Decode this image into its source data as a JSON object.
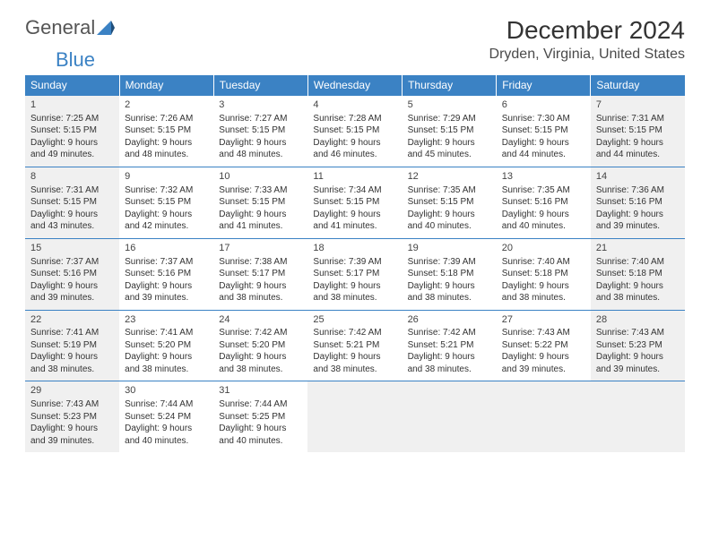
{
  "logo": {
    "part1": "General",
    "part2": "Blue"
  },
  "title": "December 2024",
  "location": "Dryden, Virginia, United States",
  "colors": {
    "header_bg": "#3b82c4",
    "header_fg": "#ffffff",
    "shade_bg": "#f0f0f0",
    "border": "#3b82c4"
  },
  "dayNames": [
    "Sunday",
    "Monday",
    "Tuesday",
    "Wednesday",
    "Thursday",
    "Friday",
    "Saturday"
  ],
  "weeks": [
    [
      {
        "n": "1",
        "shade": true,
        "sr": "Sunrise: 7:25 AM",
        "ss": "Sunset: 5:15 PM",
        "d1": "Daylight: 9 hours",
        "d2": "and 49 minutes."
      },
      {
        "n": "2",
        "shade": false,
        "sr": "Sunrise: 7:26 AM",
        "ss": "Sunset: 5:15 PM",
        "d1": "Daylight: 9 hours",
        "d2": "and 48 minutes."
      },
      {
        "n": "3",
        "shade": false,
        "sr": "Sunrise: 7:27 AM",
        "ss": "Sunset: 5:15 PM",
        "d1": "Daylight: 9 hours",
        "d2": "and 48 minutes."
      },
      {
        "n": "4",
        "shade": false,
        "sr": "Sunrise: 7:28 AM",
        "ss": "Sunset: 5:15 PM",
        "d1": "Daylight: 9 hours",
        "d2": "and 46 minutes."
      },
      {
        "n": "5",
        "shade": false,
        "sr": "Sunrise: 7:29 AM",
        "ss": "Sunset: 5:15 PM",
        "d1": "Daylight: 9 hours",
        "d2": "and 45 minutes."
      },
      {
        "n": "6",
        "shade": false,
        "sr": "Sunrise: 7:30 AM",
        "ss": "Sunset: 5:15 PM",
        "d1": "Daylight: 9 hours",
        "d2": "and 44 minutes."
      },
      {
        "n": "7",
        "shade": true,
        "sr": "Sunrise: 7:31 AM",
        "ss": "Sunset: 5:15 PM",
        "d1": "Daylight: 9 hours",
        "d2": "and 44 minutes."
      }
    ],
    [
      {
        "n": "8",
        "shade": true,
        "sr": "Sunrise: 7:31 AM",
        "ss": "Sunset: 5:15 PM",
        "d1": "Daylight: 9 hours",
        "d2": "and 43 minutes."
      },
      {
        "n": "9",
        "shade": false,
        "sr": "Sunrise: 7:32 AM",
        "ss": "Sunset: 5:15 PM",
        "d1": "Daylight: 9 hours",
        "d2": "and 42 minutes."
      },
      {
        "n": "10",
        "shade": false,
        "sr": "Sunrise: 7:33 AM",
        "ss": "Sunset: 5:15 PM",
        "d1": "Daylight: 9 hours",
        "d2": "and 41 minutes."
      },
      {
        "n": "11",
        "shade": false,
        "sr": "Sunrise: 7:34 AM",
        "ss": "Sunset: 5:15 PM",
        "d1": "Daylight: 9 hours",
        "d2": "and 41 minutes."
      },
      {
        "n": "12",
        "shade": false,
        "sr": "Sunrise: 7:35 AM",
        "ss": "Sunset: 5:15 PM",
        "d1": "Daylight: 9 hours",
        "d2": "and 40 minutes."
      },
      {
        "n": "13",
        "shade": false,
        "sr": "Sunrise: 7:35 AM",
        "ss": "Sunset: 5:16 PM",
        "d1": "Daylight: 9 hours",
        "d2": "and 40 minutes."
      },
      {
        "n": "14",
        "shade": true,
        "sr": "Sunrise: 7:36 AM",
        "ss": "Sunset: 5:16 PM",
        "d1": "Daylight: 9 hours",
        "d2": "and 39 minutes."
      }
    ],
    [
      {
        "n": "15",
        "shade": true,
        "sr": "Sunrise: 7:37 AM",
        "ss": "Sunset: 5:16 PM",
        "d1": "Daylight: 9 hours",
        "d2": "and 39 minutes."
      },
      {
        "n": "16",
        "shade": false,
        "sr": "Sunrise: 7:37 AM",
        "ss": "Sunset: 5:16 PM",
        "d1": "Daylight: 9 hours",
        "d2": "and 39 minutes."
      },
      {
        "n": "17",
        "shade": false,
        "sr": "Sunrise: 7:38 AM",
        "ss": "Sunset: 5:17 PM",
        "d1": "Daylight: 9 hours",
        "d2": "and 38 minutes."
      },
      {
        "n": "18",
        "shade": false,
        "sr": "Sunrise: 7:39 AM",
        "ss": "Sunset: 5:17 PM",
        "d1": "Daylight: 9 hours",
        "d2": "and 38 minutes."
      },
      {
        "n": "19",
        "shade": false,
        "sr": "Sunrise: 7:39 AM",
        "ss": "Sunset: 5:18 PM",
        "d1": "Daylight: 9 hours",
        "d2": "and 38 minutes."
      },
      {
        "n": "20",
        "shade": false,
        "sr": "Sunrise: 7:40 AM",
        "ss": "Sunset: 5:18 PM",
        "d1": "Daylight: 9 hours",
        "d2": "and 38 minutes."
      },
      {
        "n": "21",
        "shade": true,
        "sr": "Sunrise: 7:40 AM",
        "ss": "Sunset: 5:18 PM",
        "d1": "Daylight: 9 hours",
        "d2": "and 38 minutes."
      }
    ],
    [
      {
        "n": "22",
        "shade": true,
        "sr": "Sunrise: 7:41 AM",
        "ss": "Sunset: 5:19 PM",
        "d1": "Daylight: 9 hours",
        "d2": "and 38 minutes."
      },
      {
        "n": "23",
        "shade": false,
        "sr": "Sunrise: 7:41 AM",
        "ss": "Sunset: 5:20 PM",
        "d1": "Daylight: 9 hours",
        "d2": "and 38 minutes."
      },
      {
        "n": "24",
        "shade": false,
        "sr": "Sunrise: 7:42 AM",
        "ss": "Sunset: 5:20 PM",
        "d1": "Daylight: 9 hours",
        "d2": "and 38 minutes."
      },
      {
        "n": "25",
        "shade": false,
        "sr": "Sunrise: 7:42 AM",
        "ss": "Sunset: 5:21 PM",
        "d1": "Daylight: 9 hours",
        "d2": "and 38 minutes."
      },
      {
        "n": "26",
        "shade": false,
        "sr": "Sunrise: 7:42 AM",
        "ss": "Sunset: 5:21 PM",
        "d1": "Daylight: 9 hours",
        "d2": "and 38 minutes."
      },
      {
        "n": "27",
        "shade": false,
        "sr": "Sunrise: 7:43 AM",
        "ss": "Sunset: 5:22 PM",
        "d1": "Daylight: 9 hours",
        "d2": "and 39 minutes."
      },
      {
        "n": "28",
        "shade": true,
        "sr": "Sunrise: 7:43 AM",
        "ss": "Sunset: 5:23 PM",
        "d1": "Daylight: 9 hours",
        "d2": "and 39 minutes."
      }
    ],
    [
      {
        "n": "29",
        "shade": true,
        "sr": "Sunrise: 7:43 AM",
        "ss": "Sunset: 5:23 PM",
        "d1": "Daylight: 9 hours",
        "d2": "and 39 minutes."
      },
      {
        "n": "30",
        "shade": false,
        "sr": "Sunrise: 7:44 AM",
        "ss": "Sunset: 5:24 PM",
        "d1": "Daylight: 9 hours",
        "d2": "and 40 minutes."
      },
      {
        "n": "31",
        "shade": false,
        "sr": "Sunrise: 7:44 AM",
        "ss": "Sunset: 5:25 PM",
        "d1": "Daylight: 9 hours",
        "d2": "and 40 minutes."
      },
      {
        "empty": true
      },
      {
        "empty": true
      },
      {
        "empty": true
      },
      {
        "empty": true
      }
    ]
  ]
}
